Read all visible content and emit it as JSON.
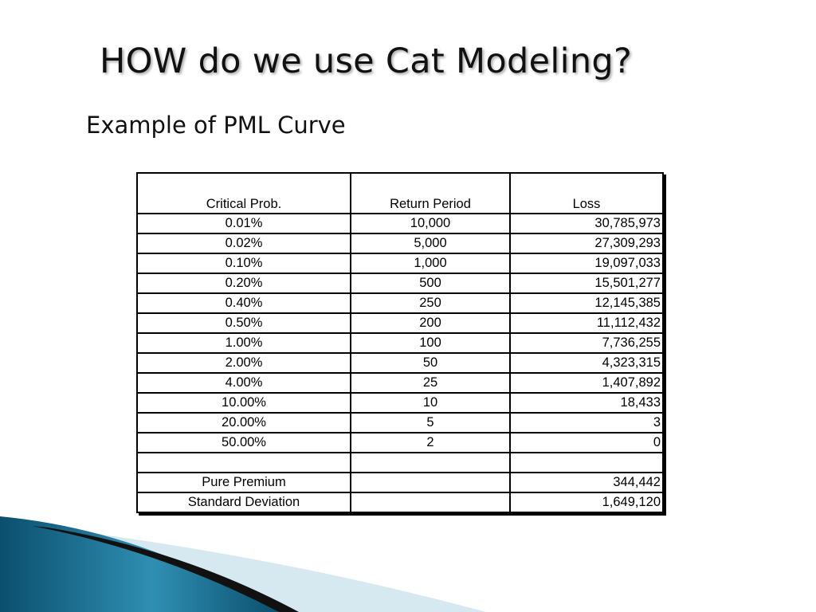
{
  "slide": {
    "title": "HOW do we use Cat Modeling?",
    "subtitle": "Example of PML Curve"
  },
  "table": {
    "headers": [
      "Critical Prob.",
      "Return Period",
      "Loss"
    ],
    "rows": [
      {
        "prob": "0.01%",
        "period": "10,000",
        "loss": "30,785,973",
        "period_bold": false
      },
      {
        "prob": "0.02%",
        "period": "5,000",
        "loss": "27,309,293",
        "period_bold": false
      },
      {
        "prob": "0.10%",
        "period": "1,000",
        "loss": "19,097,033",
        "period_bold": false
      },
      {
        "prob": "0.20%",
        "period": "500",
        "loss": "15,501,277",
        "period_bold": false
      },
      {
        "prob": "0.40%",
        "period": "250",
        "loss": "12,145,385",
        "period_bold": true
      },
      {
        "prob": "0.50%",
        "period": "200",
        "loss": "11,112,432",
        "period_bold": false
      },
      {
        "prob": "1.00%",
        "period": "100",
        "loss": "7,736,255",
        "period_bold": true
      },
      {
        "prob": "2.00%",
        "period": "50",
        "loss": "4,323,315",
        "period_bold": false
      },
      {
        "prob": "4.00%",
        "period": "25",
        "loss": "1,407,892",
        "period_bold": false
      },
      {
        "prob": "10.00%",
        "period": "10",
        "loss": "18,433",
        "period_bold": false
      },
      {
        "prob": "20.00%",
        "period": "5",
        "loss": "3",
        "period_bold": false
      },
      {
        "prob": "50.00%",
        "period": "2",
        "loss": "0",
        "period_bold": false
      },
      {
        "prob": "",
        "period": "",
        "loss": "",
        "period_bold": false
      },
      {
        "prob": "Pure Premium",
        "period": "",
        "loss": "344,442",
        "period_bold": false
      },
      {
        "prob": "Standard Deviation",
        "period": "",
        "loss": "1,649,120",
        "period_bold": false
      }
    ]
  },
  "colors": {
    "wave_light": "#d6e8f0",
    "wave_blue": "#2f8fb3",
    "wave_dark": "#0b4f6e",
    "wave_black": "#111111"
  }
}
